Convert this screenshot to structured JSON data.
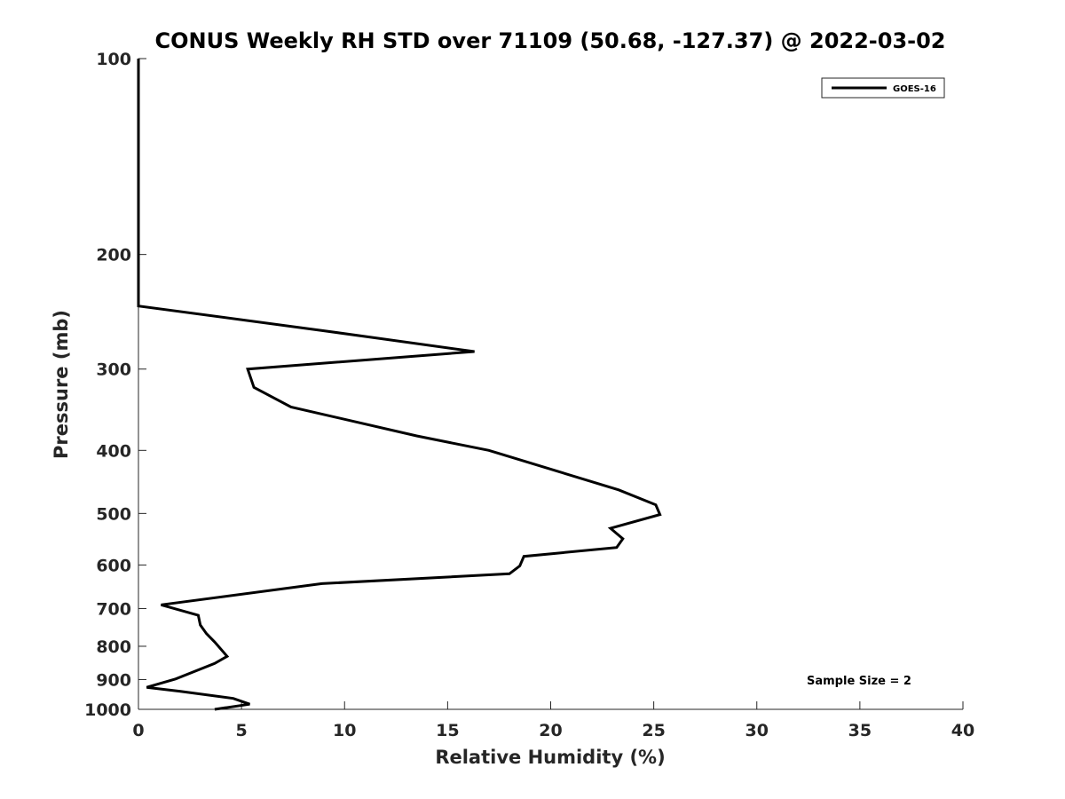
{
  "chart_data": {
    "type": "line",
    "title": "CONUS Weekly RH STD over 71109 (50.68, -127.37) @ 2022-03-02",
    "xlabel": "Relative Humidity (%)",
    "ylabel": "Pressure (mb)",
    "xlim": [
      0,
      40
    ],
    "ylim": [
      100,
      1000
    ],
    "y_scale": "log",
    "y_reversed": true,
    "x_ticks": [
      0,
      5,
      10,
      15,
      20,
      25,
      30,
      35,
      40
    ],
    "y_ticks": [
      100,
      200,
      300,
      400,
      500,
      600,
      700,
      800,
      900,
      1000
    ],
    "grid": false,
    "legend_position": "top-right",
    "annotation": "Sample Size = 2",
    "series": [
      {
        "name": "GOES-16",
        "color": "#000000",
        "points": [
          {
            "rh": 0,
            "p": 100
          },
          {
            "rh": 0,
            "p": 150
          },
          {
            "rh": 0,
            "p": 200
          },
          {
            "rh": 0,
            "p": 240
          },
          {
            "rh": 9.0,
            "p": 262
          },
          {
            "rh": 16.3,
            "p": 282
          },
          {
            "rh": 5.3,
            "p": 300
          },
          {
            "rh": 5.6,
            "p": 320
          },
          {
            "rh": 7.4,
            "p": 343
          },
          {
            "rh": 13.5,
            "p": 380
          },
          {
            "rh": 17.0,
            "p": 400
          },
          {
            "rh": 23.3,
            "p": 460
          },
          {
            "rh": 25.1,
            "p": 485
          },
          {
            "rh": 25.3,
            "p": 502
          },
          {
            "rh": 22.9,
            "p": 527
          },
          {
            "rh": 23.5,
            "p": 547
          },
          {
            "rh": 23.2,
            "p": 564
          },
          {
            "rh": 18.7,
            "p": 582
          },
          {
            "rh": 18.5,
            "p": 602
          },
          {
            "rh": 18.0,
            "p": 619
          },
          {
            "rh": 8.9,
            "p": 641
          },
          {
            "rh": 1.1,
            "p": 691
          },
          {
            "rh": 2.9,
            "p": 717
          },
          {
            "rh": 3.0,
            "p": 742
          },
          {
            "rh": 3.3,
            "p": 765
          },
          {
            "rh": 3.7,
            "p": 788
          },
          {
            "rh": 4.3,
            "p": 829
          },
          {
            "rh": 3.7,
            "p": 850
          },
          {
            "rh": 1.8,
            "p": 898
          },
          {
            "rh": 0.4,
            "p": 925
          },
          {
            "rh": 2.0,
            "p": 938
          },
          {
            "rh": 4.6,
            "p": 962
          },
          {
            "rh": 5.4,
            "p": 982
          },
          {
            "rh": 3.7,
            "p": 1000
          }
        ]
      }
    ]
  }
}
